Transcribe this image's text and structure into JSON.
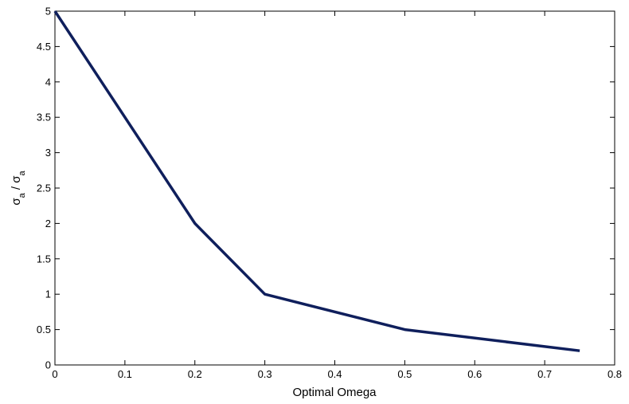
{
  "chart_data": {
    "type": "line",
    "title": "",
    "xlabel": "Optimal Omega",
    "ylabel": {
      "parts": [
        {
          "text": "σ",
          "role": "base"
        },
        {
          "text": "a",
          "role": "sub"
        },
        {
          "text": " / ",
          "role": "base"
        },
        {
          "text": "σ",
          "role": "base"
        },
        {
          "text": "a",
          "role": "sub"
        }
      ]
    },
    "xlim": [
      0,
      0.8
    ],
    "ylim": [
      0,
      5
    ],
    "xticks": [
      "0",
      "0.1",
      "0.2",
      "0.3",
      "0.4",
      "0.5",
      "0.6",
      "0.7",
      "0.8"
    ],
    "yticks": [
      "0",
      "0.5",
      "1",
      "1.5",
      "2",
      "2.5",
      "3",
      "3.5",
      "4",
      "4.5",
      "5"
    ],
    "grid": false,
    "series": [
      {
        "color": "#0f1f5c",
        "x": [
          0,
          0.2,
          0.3,
          0.5,
          0.75
        ],
        "y": [
          5,
          2,
          1,
          0.5,
          0.2
        ]
      }
    ]
  }
}
